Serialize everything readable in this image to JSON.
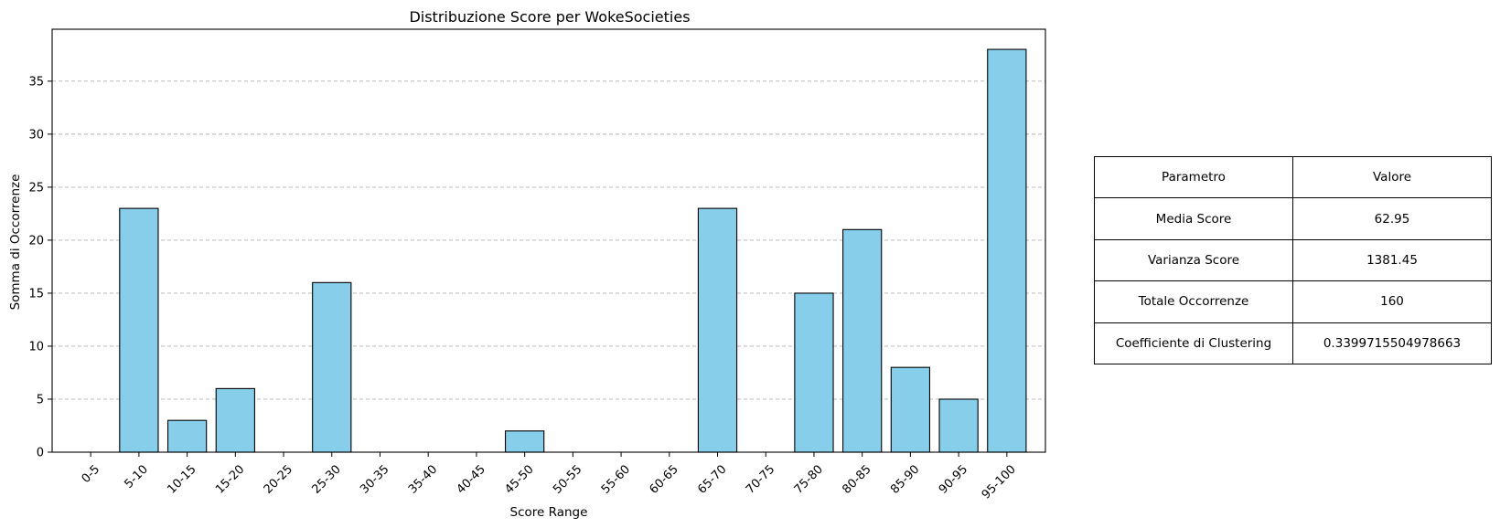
{
  "chart_data": {
    "type": "bar",
    "title": "Distribuzione Score per WokeSocieties",
    "xlabel": "Score Range",
    "ylabel": "Somma di Occorrenze",
    "categories": [
      "0-5",
      "5-10",
      "10-15",
      "15-20",
      "20-25",
      "25-30",
      "30-35",
      "35-40",
      "40-45",
      "45-50",
      "50-55",
      "55-60",
      "60-65",
      "65-70",
      "70-75",
      "75-80",
      "80-85",
      "85-90",
      "90-95",
      "95-100"
    ],
    "values": [
      0,
      23,
      3,
      6,
      0,
      16,
      0,
      0,
      0,
      2,
      0,
      0,
      0,
      23,
      0,
      15,
      21,
      8,
      5,
      38
    ],
    "ylim": [
      0,
      39.9
    ],
    "yticks": [
      0,
      5,
      10,
      15,
      20,
      25,
      30,
      35
    ],
    "grid": "y-dashed",
    "bar_color": "#87CEEB",
    "edge_color": "#000000",
    "grid_color": "#b0b0b0"
  },
  "table": {
    "rows": [
      [
        "Parametro",
        "Valore"
      ],
      [
        "Media Score",
        "62.95"
      ],
      [
        "Varianza Score",
        "1381.45"
      ],
      [
        "Totale Occorrenze",
        "160"
      ],
      [
        "Coefficiente di Clustering",
        "0.3399715504978663"
      ]
    ]
  }
}
